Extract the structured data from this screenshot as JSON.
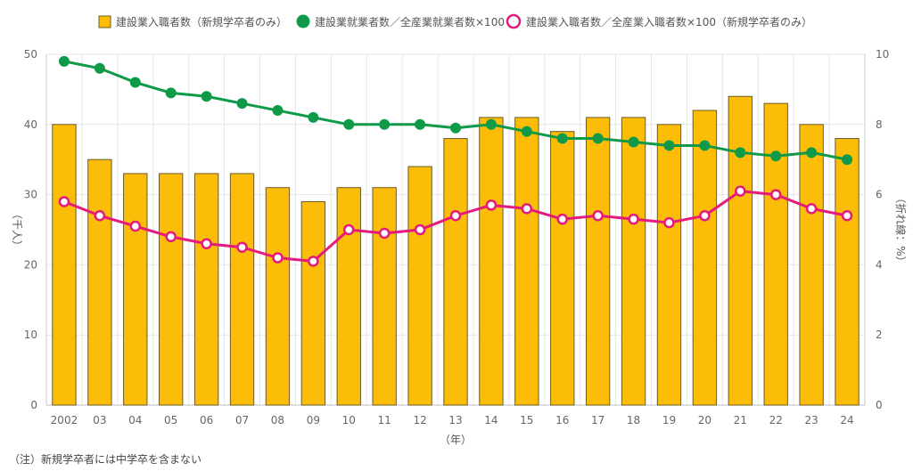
{
  "chart_data": {
    "type": "bar",
    "categories": [
      "2002",
      "03",
      "04",
      "05",
      "06",
      "07",
      "08",
      "09",
      "10",
      "11",
      "12",
      "13",
      "14",
      "15",
      "16",
      "17",
      "18",
      "19",
      "20",
      "21",
      "22",
      "23",
      "24"
    ],
    "series": [
      {
        "name": "建設業入職者数（新規学卒者のみ）",
        "type": "bar",
        "axis": "left",
        "color": "#fbbd08",
        "values": [
          40,
          35,
          33,
          33,
          33,
          33,
          31,
          29,
          31,
          31,
          34,
          38,
          41,
          41,
          39,
          41,
          41,
          40,
          42,
          44,
          43,
          40,
          38
        ]
      },
      {
        "name": "建設業就業者数／全産業就業者数×100",
        "type": "line",
        "axis": "right",
        "color": "#0e9a48",
        "values": [
          9.8,
          9.6,
          9.2,
          8.9,
          8.8,
          8.6,
          8.4,
          8.2,
          8.0,
          8.0,
          8.0,
          7.9,
          8.0,
          7.8,
          7.6,
          7.6,
          7.5,
          7.4,
          7.4,
          7.2,
          7.1,
          7.2,
          7.0
        ]
      },
      {
        "name": "建設業入職者数／全産業入職者数×100（新規学卒者のみ）",
        "type": "line",
        "axis": "right",
        "color": "#e6197c",
        "values": [
          5.8,
          5.4,
          5.1,
          4.8,
          4.6,
          4.5,
          4.2,
          4.1,
          5.0,
          4.9,
          5.0,
          5.4,
          5.7,
          5.6,
          5.3,
          5.4,
          5.3,
          5.2,
          5.4,
          6.1,
          6.0,
          5.6,
          5.4
        ]
      }
    ],
    "xlabel": "（年）",
    "ylabel_left": "（千人）",
    "ylabel_right": "（折れ線：%）",
    "ylim_left": [
      0,
      50
    ],
    "ylim_right": [
      0,
      10
    ],
    "yticks_left": [
      0,
      10,
      20,
      30,
      40,
      50
    ],
    "yticks_right": [
      0,
      2,
      4,
      6,
      8,
      10
    ],
    "grid": true,
    "legend_position": "top"
  },
  "note": "（注）新規学卒者には中学卒を含まない"
}
